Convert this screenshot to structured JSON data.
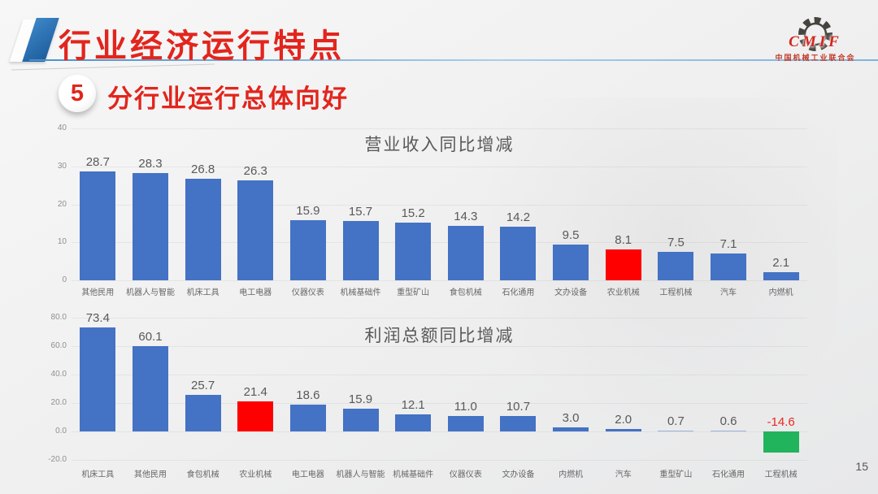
{
  "header": {
    "main_title": "行业经济运行特点",
    "section_number": "5",
    "section_title": "分行业运行总体向好"
  },
  "logo": {
    "icon": "gear-icon",
    "acronym": "CMIF",
    "org_name": "中国机械工业联合会"
  },
  "page_number": "15",
  "colors": {
    "title_red": "#e2251d",
    "bar_blue": "#4472c4",
    "bar_red": "#ff0000",
    "bar_green": "#22b45c",
    "bar_light_blue": "#9fb3dc",
    "negative_label_red": "#e8291f"
  },
  "chart_data": [
    {
      "type": "bar",
      "title": "营业收入同比增减",
      "categories": [
        "其他民用",
        "机器人与智能",
        "机床工具",
        "电工电器",
        "仪器仪表",
        "机械基础件",
        "重型矿山",
        "食包机械",
        "石化通用",
        "文办设备",
        "农业机械",
        "工程机械",
        "汽车",
        "内燃机"
      ],
      "values": [
        28.7,
        28.3,
        26.8,
        26.3,
        15.9,
        15.7,
        15.2,
        14.3,
        14.2,
        9.5,
        8.1,
        7.5,
        7.1,
        2.1
      ],
      "bar_colors": [
        "#4472c4",
        "#4472c4",
        "#4472c4",
        "#4472c4",
        "#4472c4",
        "#4472c4",
        "#4472c4",
        "#4472c4",
        "#4472c4",
        "#4472c4",
        "#ff0000",
        "#4472c4",
        "#4472c4",
        "#4472c4"
      ],
      "ylim": [
        0,
        40
      ],
      "ytick_labels": [
        "40",
        "30",
        "20",
        "10",
        "0"
      ],
      "grid": true,
      "legend": false
    },
    {
      "type": "bar",
      "title": "利润总额同比增减",
      "categories": [
        "机床工具",
        "其他民用",
        "食包机械",
        "农业机械",
        "电工电器",
        "机器人与智能",
        "机械基础件",
        "仪器仪表",
        "文办设备",
        "内燃机",
        "汽车",
        "重型矿山",
        "石化通用",
        "工程机械"
      ],
      "values": [
        73.4,
        60.1,
        25.7,
        21.4,
        18.6,
        15.9,
        12.1,
        11.0,
        10.7,
        3.0,
        2.0,
        0.7,
        0.6,
        -14.6
      ],
      "bar_colors": [
        "#4472c4",
        "#4472c4",
        "#4472c4",
        "#ff0000",
        "#4472c4",
        "#4472c4",
        "#4472c4",
        "#4472c4",
        "#4472c4",
        "#4472c4",
        "#4472c4",
        "#9fb3dc",
        "#9fb3dc",
        "#22b45c"
      ],
      "ylim": [
        -20,
        80
      ],
      "ytick_labels": [
        "80.0",
        "60.0",
        "40.0",
        "20.0",
        "0.0",
        "-20.0"
      ],
      "grid": true,
      "legend": false
    }
  ]
}
